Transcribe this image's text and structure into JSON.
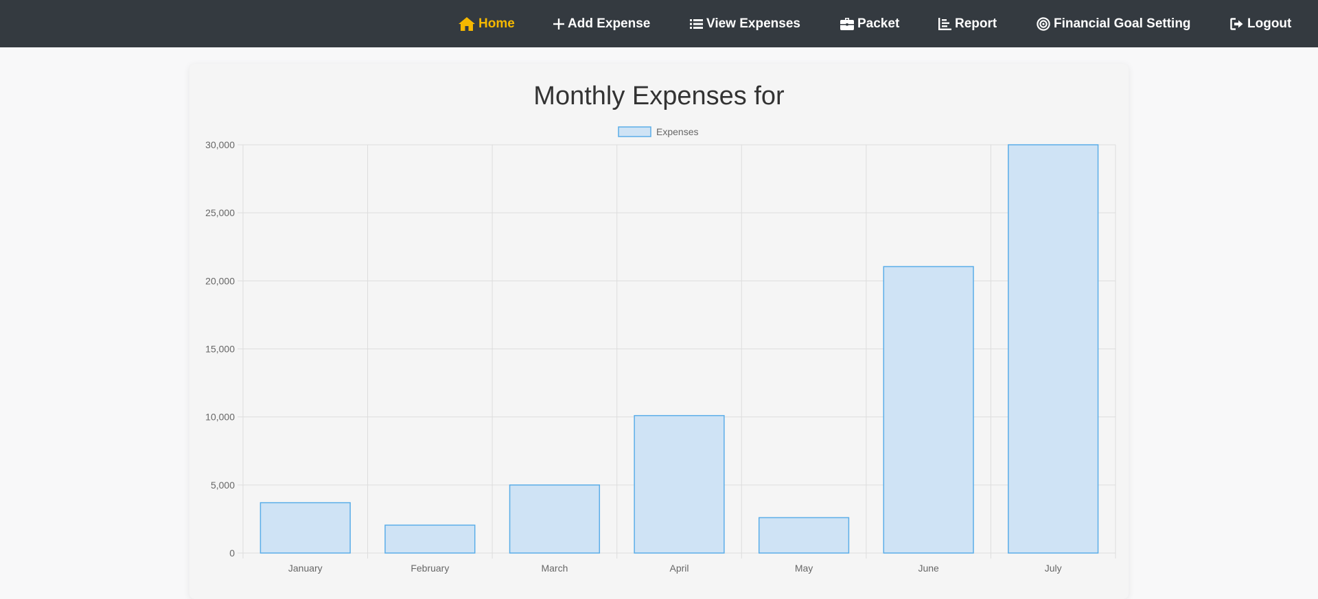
{
  "nav": {
    "items": [
      {
        "label": "Home",
        "icon": "home-icon",
        "active": true
      },
      {
        "label": "Add Expense",
        "icon": "plus-icon",
        "active": false
      },
      {
        "label": "View Expenses",
        "icon": "list-icon",
        "active": false
      },
      {
        "label": "Packet",
        "icon": "briefcase-icon",
        "active": false
      },
      {
        "label": "Report",
        "icon": "chart-icon",
        "active": false
      },
      {
        "label": "Financial Goal Setting",
        "icon": "target-icon",
        "active": false
      },
      {
        "label": "Logout",
        "icon": "logout-icon",
        "active": false
      }
    ]
  },
  "page": {
    "title": "Monthly Expenses for"
  },
  "chart_data": {
    "type": "bar",
    "categories": [
      "January",
      "February",
      "March",
      "April",
      "May",
      "June",
      "July"
    ],
    "series": [
      {
        "name": "Expenses",
        "values": [
          3700,
          2050,
          5000,
          10100,
          2600,
          21050,
          30000
        ]
      }
    ],
    "yticks": [
      "0",
      "5,000",
      "10,000",
      "15,000",
      "20,000",
      "25,000",
      "30,000"
    ],
    "ylim": [
      0,
      30000
    ],
    "grid": true,
    "legend_position": "top-center",
    "colors": {
      "fill": "#cfe3f5",
      "stroke": "#5aade8",
      "grid": "#dddddd",
      "text": "#666666"
    }
  }
}
